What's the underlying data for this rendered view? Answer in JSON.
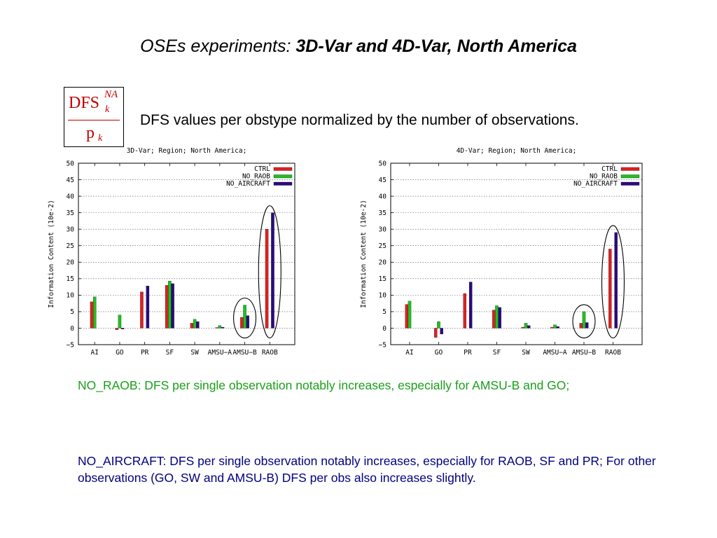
{
  "title": {
    "prefix": "OSEs experiments: ",
    "bold": "3D-Var and 4D-Var, North America"
  },
  "formula": {
    "numerator": "DFS",
    "superscript": "NA",
    "subscript_top": "k",
    "denominator": "p",
    "subscript_bottom": "k"
  },
  "subtitle": "DFS values per obstype normalized by the number of observations.",
  "colors": {
    "ctrl": "#e02020",
    "no_raob": "#20c020",
    "no_aircraft": "#2a0a80",
    "circle": "#000000"
  },
  "chart_data": [
    {
      "type": "bar",
      "title": "3D-Var; Region; North America;",
      "xlabel": "",
      "ylabel": "Information Content (10e-2)",
      "ylim": [
        -5,
        50
      ],
      "yticks": [
        -5,
        0,
        5,
        10,
        15,
        20,
        25,
        30,
        35,
        40,
        45,
        50
      ],
      "grid": true,
      "legend_position": "top-right",
      "categories": [
        "AI",
        "GO",
        "PR",
        "SF",
        "SW",
        "AMSU-A",
        "AMSU-B",
        "RAOB"
      ],
      "series": [
        {
          "name": "CTRL",
          "values": [
            8,
            -0.5,
            11,
            13,
            1.5,
            0.2,
            3.3,
            30
          ]
        },
        {
          "name": "NO_RAOB",
          "values": [
            9.5,
            4,
            null,
            14.3,
            2.7,
            0.8,
            7,
            null
          ]
        },
        {
          "name": "NO_AIRCRAFT",
          "values": [
            null,
            -0.3,
            12.8,
            13.5,
            2,
            0.3,
            3.8,
            35
          ]
        }
      ],
      "highlighted_categories": [
        "AMSU-B",
        "RAOB"
      ]
    },
    {
      "type": "bar",
      "title": "4D-Var; Region; North America;",
      "xlabel": "",
      "ylabel": "Information Content (10e-2)",
      "ylim": [
        -5,
        50
      ],
      "yticks": [
        -5,
        0,
        5,
        10,
        15,
        20,
        25,
        30,
        35,
        40,
        45,
        50
      ],
      "grid": true,
      "legend_position": "top-right",
      "categories": [
        "AI",
        "GO",
        "PR",
        "SF",
        "SW",
        "AMSU-A",
        "AMSU-B",
        "RAOB"
      ],
      "series": [
        {
          "name": "CTRL",
          "values": [
            7.2,
            -2.8,
            10.5,
            5.5,
            0.3,
            0.3,
            1.5,
            24
          ]
        },
        {
          "name": "NO_RAOB",
          "values": [
            8.2,
            2,
            null,
            6.8,
            1.5,
            1,
            5,
            null
          ]
        },
        {
          "name": "NO_AIRCRAFT",
          "values": [
            null,
            -1.8,
            14,
            6.3,
            0.8,
            0.5,
            1.7,
            29
          ]
        }
      ],
      "highlighted_categories": [
        "AMSU-B",
        "RAOB"
      ]
    }
  ],
  "notes": {
    "no_raob": "NO_RAOB: DFS per single observation notably increases, especially for AMSU-B and GO;",
    "no_aircraft": "NO_AIRCRAFT: DFS per single observation notably increases, especially for RAOB, SF and PR; For other observations (GO, SW and AMSU-B) DFS per obs also increases slightly."
  }
}
